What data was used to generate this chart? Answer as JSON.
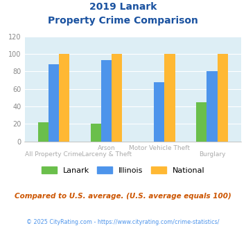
{
  "title_line1": "2019 Lanark",
  "title_line2": "Property Crime Comparison",
  "cat_labels_top": [
    "",
    "Arson",
    "Motor Vehicle Theft",
    ""
  ],
  "cat_labels_bot": [
    "All Property Crime",
    "Larceny & Theft",
    "",
    "Burglary"
  ],
  "lanark": [
    22,
    20,
    0,
    45
  ],
  "illinois": [
    88,
    93,
    68,
    80
  ],
  "national": [
    100,
    100,
    100,
    100
  ],
  "bar_colors": {
    "lanark": "#6abf4b",
    "illinois": "#4d94eb",
    "national": "#ffb833"
  },
  "ylim": [
    0,
    120
  ],
  "yticks": [
    0,
    20,
    40,
    60,
    80,
    100,
    120
  ],
  "background_color": "#ddeef5",
  "title_color": "#1a52a0",
  "tick_label_color": "#aaaaaa",
  "footer_note": "Compared to U.S. average. (U.S. average equals 100)",
  "footer_note_color": "#cc5500",
  "copyright": "© 2025 CityRating.com - https://www.cityrating.com/crime-statistics/",
  "copyright_color": "#4d94eb",
  "legend_labels": [
    "Lanark",
    "Illinois",
    "National"
  ]
}
